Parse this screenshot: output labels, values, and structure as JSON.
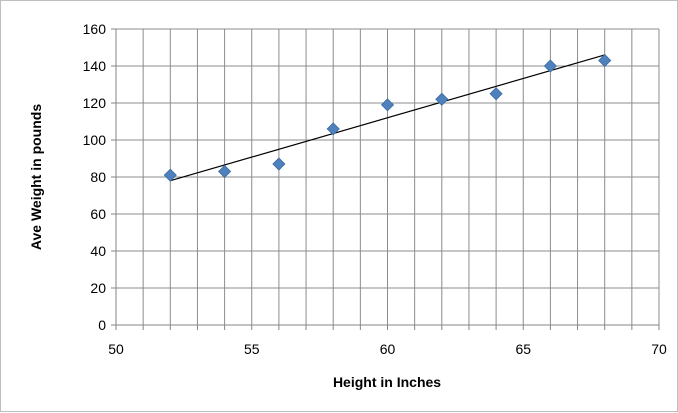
{
  "chart_data": {
    "type": "scatter",
    "title": "",
    "xlabel": "Height in Inches",
    "ylabel": "Ave Weight in pounds",
    "xlim": [
      50,
      70
    ],
    "ylim": [
      0,
      160
    ],
    "x_ticks": [
      50,
      55,
      60,
      65,
      70
    ],
    "y_ticks": [
      0,
      20,
      40,
      60,
      80,
      100,
      120,
      140,
      160
    ],
    "x_minor_step": 1,
    "grid": true,
    "legend": "none",
    "marker": "diamond",
    "series": [
      {
        "x": [
          52,
          54,
          56,
          58,
          60,
          62,
          64,
          66,
          68
        ],
        "y": [
          81,
          83,
          87,
          106,
          119,
          122,
          125,
          140,
          143
        ],
        "color": "#4f81bd"
      }
    ],
    "trendline": {
      "type": "linear",
      "x": [
        52,
        68
      ],
      "y": [
        78,
        146
      ],
      "color": "#000000"
    }
  }
}
